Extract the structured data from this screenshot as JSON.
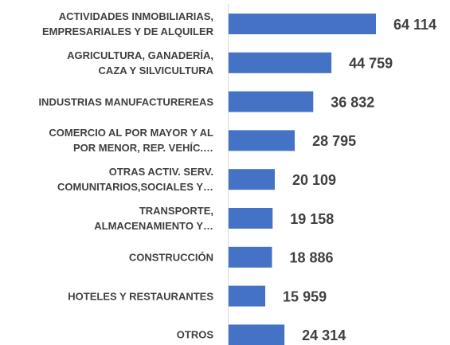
{
  "chart_data": {
    "type": "barh",
    "categories": [
      "ACTIVIDADES INMOBILIARIAS,\nEMPRESARIALES Y DE ALQUILER",
      "AGRICULTURA, GANADERÍA,\nCAZA Y SILVICULTURA",
      "INDUSTRIAS MANUFACTUREREAS",
      "COMERCIO AL POR MAYOR Y AL\nPOR MENOR, REP. VEHÍC.…",
      "OTRAS ACTIV. SERV.\nCOMUNITARIOS,SOCIALES Y…",
      "TRANSPORTE,\nALMACENAMIENTO Y…",
      "CONSTRUCCIÓN",
      "HOTELES Y RESTAURANTES",
      "OTROS"
    ],
    "values": [
      64114,
      44759,
      36832,
      28795,
      20109,
      19158,
      18886,
      15959,
      24314
    ],
    "value_labels": [
      "64 114",
      "44 759",
      "36 832",
      "28 795",
      "20 109",
      "19 158",
      "18 886",
      "15 959",
      "24 314"
    ],
    "color": "#4472c4"
  }
}
